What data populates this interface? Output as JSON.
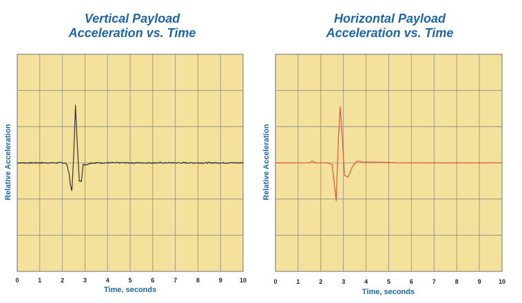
{
  "chart_data": [
    {
      "type": "line",
      "title_line1": "Vertical Payload",
      "title_line2": "Acceleration vs. Time",
      "xlabel": "Time, seconds",
      "ylabel": "Relative Acceleration",
      "xlim": [
        0,
        10
      ],
      "ylim": [
        -3,
        3
      ],
      "xticks": [
        "0",
        "1",
        "2",
        "3",
        "4",
        "5",
        "6",
        "7",
        "8",
        "9",
        "10"
      ],
      "grid": true,
      "colors": {
        "plot_bg": "#f4e19c",
        "grid": "#8a8a8a",
        "line": "#333333"
      },
      "series": [
        {
          "x": [
            0,
            1.5,
            2.1,
            2.2,
            2.3,
            2.35,
            2.42,
            2.5,
            2.58,
            2.66,
            2.75,
            2.84,
            2.92,
            3.05,
            3.3,
            4,
            5,
            6,
            7,
            8,
            9,
            10
          ],
          "values": [
            0,
            0,
            0,
            -0.05,
            -0.3,
            -0.6,
            -0.78,
            0.2,
            1.6,
            0.5,
            -0.5,
            -0.5,
            -0.05,
            -0.05,
            0,
            0,
            0,
            0,
            0,
            0,
            0,
            0
          ]
        }
      ]
    },
    {
      "type": "line",
      "title_line1": "Horizontal Payload",
      "title_line2": "Acceleration vs. Time",
      "xlabel": "Time, seconds",
      "ylabel": "Relative Acceleration",
      "xlim": [
        0,
        10
      ],
      "ylim": [
        -3,
        3
      ],
      "xticks": [
        "0",
        "1",
        "2",
        "3",
        "4",
        "5",
        "6",
        "7",
        "8",
        "9",
        "10"
      ],
      "grid": true,
      "colors": {
        "plot_bg": "#f4e19c",
        "grid": "#8a8a8a",
        "line": "#e2533a"
      },
      "series": [
        {
          "x": [
            0,
            1.5,
            1.62,
            1.75,
            2.3,
            2.5,
            2.6,
            2.68,
            2.78,
            2.86,
            2.95,
            3.05,
            3.2,
            3.4,
            3.6,
            3.9,
            4.5,
            5.5,
            7,
            9,
            10
          ],
          "values": [
            0,
            0,
            0.05,
            0,
            0,
            -0.05,
            -0.6,
            -1.05,
            0.7,
            1.55,
            0.7,
            -0.35,
            -0.4,
            -0.1,
            0.05,
            0.02,
            0.02,
            0,
            0,
            0,
            0
          ]
        }
      ]
    }
  ]
}
